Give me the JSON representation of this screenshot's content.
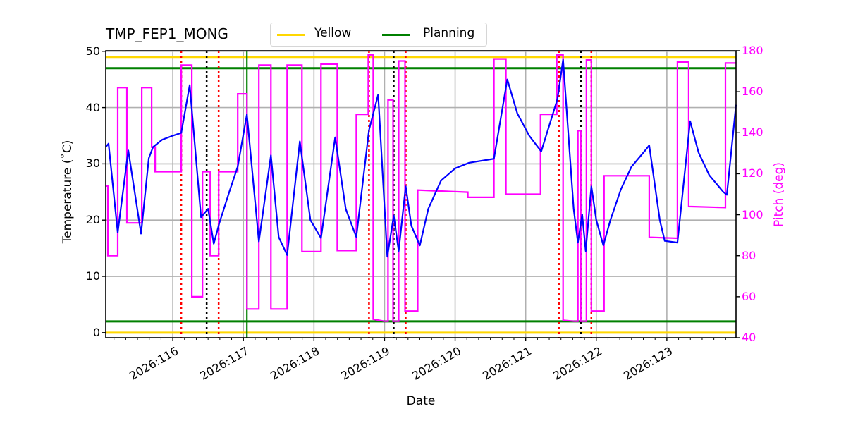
{
  "title": "TMP_FEP1_MONG",
  "legend": [
    {
      "label": "Yellow",
      "color": "#ffd700"
    },
    {
      "label": "Planning",
      "color": "#008000"
    }
  ],
  "axes": {
    "xlabel": "Date",
    "ylabel_left": "Temperature ($^\\circ$C)",
    "ylabel_left_display": "Temperature (˚C)",
    "ylabel_right": "Pitch (deg)"
  },
  "chart_data": {
    "type": "line",
    "title": "TMP_FEP1_MONG",
    "xlabel": "Date",
    "ylabel": "Temperature (°C)",
    "ylabel_right": "Pitch (deg)",
    "xlim_day": [
      115.05,
      123.98
    ],
    "ylim": [
      -0.9,
      50.1
    ],
    "ylim_right": [
      40,
      180
    ],
    "xticks": [
      {
        "day": 116,
        "label": "2026:116"
      },
      {
        "day": 117,
        "label": "2026:117"
      },
      {
        "day": 118,
        "label": "2026:118"
      },
      {
        "day": 119,
        "label": "2026:119"
      },
      {
        "day": 120,
        "label": "2026:120"
      },
      {
        "day": 121,
        "label": "2026:121"
      },
      {
        "day": 122,
        "label": "2026:122"
      },
      {
        "day": 123,
        "label": "2026:123"
      }
    ],
    "yticks_left": [
      0,
      10,
      20,
      30,
      40,
      50
    ],
    "yticks_right": [
      40,
      60,
      80,
      100,
      120,
      140,
      160,
      180
    ],
    "grid": true,
    "legend_position": "top center (above axes)",
    "limits": [
      {
        "name": "Yellow",
        "values": [
          0,
          49
        ],
        "color": "#ffd700"
      },
      {
        "name": "Planning",
        "values": [
          2,
          47
        ],
        "color": "#008000"
      }
    ],
    "vlines": [
      {
        "day": 116.12,
        "color": "#ff0000",
        "style": "dotted"
      },
      {
        "day": 116.48,
        "color": "#000000",
        "style": "dotted"
      },
      {
        "day": 116.65,
        "color": "#ff0000",
        "style": "dotted"
      },
      {
        "day": 117.05,
        "color": "#008000",
        "style": "solid"
      },
      {
        "day": 118.78,
        "color": "#ff0000",
        "style": "dotted"
      },
      {
        "day": 119.13,
        "color": "#000000",
        "style": "dotted"
      },
      {
        "day": 119.3,
        "color": "#ff0000",
        "style": "dotted"
      },
      {
        "day": 121.47,
        "color": "#ff0000",
        "style": "dotted"
      },
      {
        "day": 121.78,
        "color": "#000000",
        "style": "dotted"
      },
      {
        "day": 121.93,
        "color": "#ff0000",
        "style": "dotted"
      }
    ],
    "series": [
      {
        "name": "TMP_FEP1_MONG",
        "axis": "left",
        "color": "#0000ff",
        "points": [
          [
            115.05,
            33.0
          ],
          [
            115.09,
            33.6
          ],
          [
            115.22,
            17.8
          ],
          [
            115.37,
            32.4
          ],
          [
            115.55,
            17.6
          ],
          [
            115.66,
            31.0
          ],
          [
            115.72,
            33.0
          ],
          [
            115.85,
            34.3
          ],
          [
            116.0,
            35.0
          ],
          [
            116.12,
            35.5
          ],
          [
            116.24,
            44.0
          ],
          [
            116.4,
            20.5
          ],
          [
            116.5,
            22.0
          ],
          [
            116.58,
            15.8
          ],
          [
            116.66,
            19.5
          ],
          [
            116.8,
            25.0
          ],
          [
            116.92,
            29.5
          ],
          [
            117.05,
            38.8
          ],
          [
            117.22,
            16.2
          ],
          [
            117.39,
            31.5
          ],
          [
            117.5,
            17.0
          ],
          [
            117.62,
            13.8
          ],
          [
            117.8,
            34.0
          ],
          [
            117.95,
            20.0
          ],
          [
            118.1,
            16.8
          ],
          [
            118.3,
            34.7
          ],
          [
            118.45,
            22.0
          ],
          [
            118.6,
            17.0
          ],
          [
            118.78,
            36.0
          ],
          [
            118.91,
            42.3
          ],
          [
            119.04,
            13.5
          ],
          [
            119.13,
            20.8
          ],
          [
            119.2,
            14.5
          ],
          [
            119.3,
            26.0
          ],
          [
            119.38,
            19.0
          ],
          [
            119.5,
            15.5
          ],
          [
            119.62,
            22.0
          ],
          [
            119.8,
            27.0
          ],
          [
            120.0,
            29.2
          ],
          [
            120.2,
            30.2
          ],
          [
            120.5,
            30.8
          ],
          [
            120.55,
            30.9
          ],
          [
            120.74,
            45.0
          ],
          [
            120.88,
            39.0
          ],
          [
            121.05,
            35.0
          ],
          [
            121.22,
            32.2
          ],
          [
            121.45,
            41.5
          ],
          [
            121.53,
            48.5
          ],
          [
            121.68,
            22.0
          ],
          [
            121.74,
            16.0
          ],
          [
            121.8,
            21.0
          ],
          [
            121.85,
            14.5
          ],
          [
            121.93,
            26.0
          ],
          [
            122.0,
            20.0
          ],
          [
            122.1,
            15.5
          ],
          [
            122.2,
            20.0
          ],
          [
            122.35,
            25.5
          ],
          [
            122.5,
            29.5
          ],
          [
            122.7,
            32.5
          ],
          [
            122.75,
            33.3
          ],
          [
            122.9,
            20.0
          ],
          [
            122.97,
            16.3
          ],
          [
            123.15,
            16.0
          ],
          [
            123.33,
            37.6
          ],
          [
            123.45,
            32.0
          ],
          [
            123.6,
            28.0
          ],
          [
            123.8,
            25.0
          ],
          [
            123.85,
            24.5
          ],
          [
            123.98,
            40.5
          ]
        ]
      },
      {
        "name": "Pitch",
        "axis": "right",
        "color": "#ff00ff",
        "points": [
          [
            115.05,
            114
          ],
          [
            115.08,
            114
          ],
          [
            115.08,
            80
          ],
          [
            115.22,
            80
          ],
          [
            115.22,
            162
          ],
          [
            115.35,
            162
          ],
          [
            115.35,
            96
          ],
          [
            115.56,
            96
          ],
          [
            115.56,
            162
          ],
          [
            115.7,
            162
          ],
          [
            115.7,
            133
          ],
          [
            115.75,
            133
          ],
          [
            115.75,
            121
          ],
          [
            116.12,
            121
          ],
          [
            116.12,
            173
          ],
          [
            116.27,
            173
          ],
          [
            116.27,
            60
          ],
          [
            116.42,
            60
          ],
          [
            116.42,
            121
          ],
          [
            116.53,
            121
          ],
          [
            116.53,
            80
          ],
          [
            116.65,
            80
          ],
          [
            116.65,
            121
          ],
          [
            116.92,
            121
          ],
          [
            116.92,
            159
          ],
          [
            117.05,
            159
          ],
          [
            117.05,
            54
          ],
          [
            117.22,
            54
          ],
          [
            117.22,
            173
          ],
          [
            117.39,
            173
          ],
          [
            117.39,
            54
          ],
          [
            117.62,
            54
          ],
          [
            117.62,
            173
          ],
          [
            117.83,
            173
          ],
          [
            117.83,
            82
          ],
          [
            118.1,
            82
          ],
          [
            118.1,
            173.5
          ],
          [
            118.33,
            173.5
          ],
          [
            118.33,
            82.5
          ],
          [
            118.6,
            82.5
          ],
          [
            118.6,
            149
          ],
          [
            118.77,
            149
          ],
          [
            118.77,
            178
          ],
          [
            118.84,
            178
          ],
          [
            118.84,
            49
          ],
          [
            119.0,
            48
          ],
          [
            119.0,
            48
          ],
          [
            119.05,
            48
          ],
          [
            119.05,
            156
          ],
          [
            119.12,
            156
          ],
          [
            119.12,
            48
          ],
          [
            119.2,
            48
          ],
          [
            119.2,
            175
          ],
          [
            119.29,
            175
          ],
          [
            119.29,
            53
          ],
          [
            119.47,
            53
          ],
          [
            119.47,
            112
          ],
          [
            120.18,
            111
          ],
          [
            120.18,
            108.5
          ],
          [
            120.55,
            108.5
          ],
          [
            120.55,
            176
          ],
          [
            120.72,
            176
          ],
          [
            120.72,
            110
          ],
          [
            121.21,
            110
          ],
          [
            121.21,
            149
          ],
          [
            121.44,
            149
          ],
          [
            121.44,
            178
          ],
          [
            121.53,
            178
          ],
          [
            121.53,
            48.5
          ],
          [
            121.69,
            48
          ],
          [
            121.74,
            48
          ],
          [
            121.74,
            141
          ],
          [
            121.78,
            141
          ],
          [
            121.78,
            48
          ],
          [
            121.86,
            48
          ],
          [
            121.86,
            175.5
          ],
          [
            121.93,
            175.5
          ],
          [
            121.93,
            53
          ],
          [
            122.11,
            53
          ],
          [
            122.11,
            119
          ],
          [
            122.75,
            119
          ],
          [
            122.75,
            89
          ],
          [
            123.15,
            88.5
          ],
          [
            123.15,
            174.5
          ],
          [
            123.31,
            174.5
          ],
          [
            123.31,
            104
          ],
          [
            123.83,
            103.5
          ],
          [
            123.83,
            174
          ],
          [
            123.98,
            174
          ]
        ]
      }
    ]
  }
}
